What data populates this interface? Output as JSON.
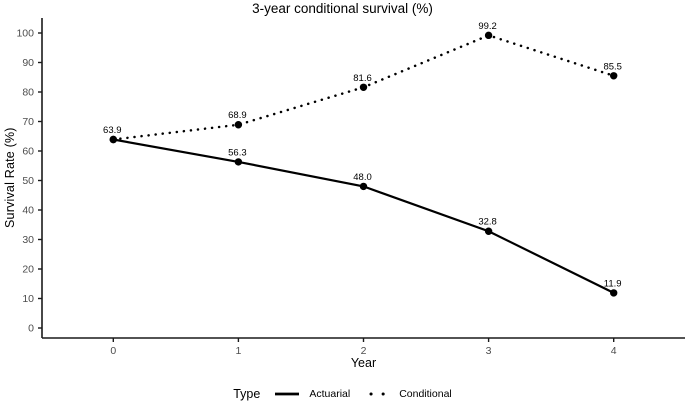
{
  "chart_data": {
    "type": "line",
    "title": "3-year conditional survival (%)",
    "xlabel": "Year",
    "ylabel": "Survival Rate (%)",
    "x": [
      0,
      1,
      2,
      3,
      4
    ],
    "xticks": [
      0,
      1,
      2,
      3,
      4
    ],
    "yticks": [
      0,
      10,
      20,
      30,
      40,
      50,
      60,
      70,
      80,
      90,
      100
    ],
    "xlim": [
      -0.57,
      4.57
    ],
    "ylim": [
      0,
      100
    ],
    "grid": false,
    "legend_position": "bottom",
    "legend_title": "Type",
    "series": [
      {
        "name": "Actuarial",
        "style": "solid",
        "values": [
          63.9,
          56.3,
          48.0,
          32.8,
          11.9
        ],
        "labels": [
          "63.9",
          "56.3",
          "48.0",
          "32.8",
          "11.9"
        ]
      },
      {
        "name": "Conditional",
        "style": "dotted",
        "values": [
          63.9,
          68.9,
          81.6,
          99.2,
          85.5
        ],
        "labels": [
          "",
          "68.9",
          "81.6",
          "99.2",
          "85.5"
        ]
      }
    ],
    "colors": {
      "line": "#000000",
      "point": "#000000",
      "axis": "#1a1a1a",
      "tick_label": "#4d4d4d",
      "data_label": "#000000",
      "background": "#ffffff"
    }
  }
}
